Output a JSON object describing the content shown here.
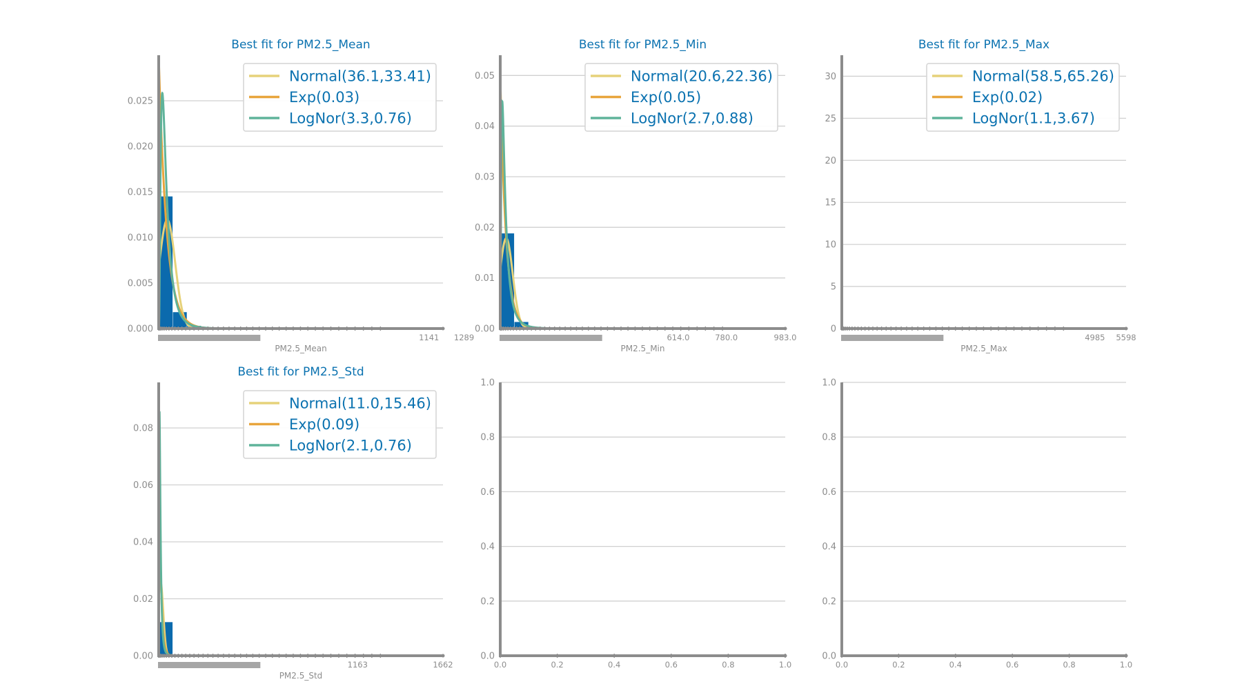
{
  "colors": {
    "hist": "#0b6aad",
    "normal": "#e6d27a",
    "exp": "#e8a53c",
    "lognor": "#5fb39a",
    "title": "#0b72b0",
    "axis": "#8c8c8c",
    "grid": "#d0d0d0"
  },
  "chart_data": [
    {
      "type": "histogram",
      "title": "Best fit for PM2.5_Mean",
      "xlabel": "PM2.5_Mean",
      "xlim": [
        0,
        1200
      ],
      "ylim": [
        0,
        0.03
      ],
      "yticks": [
        "0.000",
        "0.005",
        "0.010",
        "0.015",
        "0.020",
        "0.025"
      ],
      "xtick_labels": [
        "1141",
        "1289"
      ],
      "bins": {
        "start": 0,
        "width": 60,
        "density": [
          0.0145,
          0.0018,
          0.0003,
          5e-05
        ]
      },
      "legend": [
        "Normal(36.1,33.41)",
        "Exp(0.03)",
        "LogNor(3.3,0.76)"
      ],
      "fits": {
        "normal": {
          "mu": 36.1,
          "sigma": 33.41
        },
        "exp": {
          "lambda": 0.03
        },
        "lognor": {
          "mu": 3.3,
          "sigma": 0.76
        }
      }
    },
    {
      "type": "histogram",
      "title": "Best fit for PM2.5_Min",
      "xlabel": "PM2.5_Min",
      "xlim": [
        0,
        983
      ],
      "ylim": [
        0,
        0.054
      ],
      "yticks": [
        "0.00",
        "0.01",
        "0.02",
        "0.03",
        "0.04",
        "0.05"
      ],
      "xtick_labels": [
        "614.0",
        "780.0",
        "983.0"
      ],
      "bins": {
        "start": 0,
        "width": 49,
        "density": [
          0.0188,
          0.0013,
          0.0002,
          4e-05
        ]
      },
      "legend": [
        "Normal(20.6,22.36)",
        "Exp(0.05)",
        "LogNor(2.7,0.88)"
      ],
      "fits": {
        "normal": {
          "mu": 20.6,
          "sigma": 22.36
        },
        "exp": {
          "lambda": 0.05
        },
        "lognor": {
          "mu": 2.7,
          "sigma": 0.88
        }
      }
    },
    {
      "type": "histogram",
      "title": "Best fit for PM2.5_Max",
      "xlabel": "PM2.5_Max",
      "xlim": [
        0,
        5598
      ],
      "ylim": [
        0,
        32.5
      ],
      "yticks": [
        "0",
        "5",
        "10",
        "15",
        "20",
        "25",
        "30"
      ],
      "xtick_labels": [
        "4985",
        "5598"
      ],
      "bins": {
        "start": 0,
        "width": 280,
        "density": [
          0.003,
          0.0002
        ]
      },
      "legend": [
        "Normal(58.5,65.26)",
        "Exp(0.02)",
        "LogNor(1.1,3.67)"
      ],
      "fits": {
        "normal": {
          "mu": 58.5,
          "sigma": 65.26
        },
        "exp": {
          "lambda": 0.02
        },
        "lognor": {
          "mu": 1.1,
          "sigma": 3.67
        }
      }
    },
    {
      "type": "histogram",
      "title": "Best fit for PM2.5_Std",
      "xlabel": "PM2.5_Std",
      "xlim": [
        0,
        1662
      ],
      "ylim": [
        0,
        0.096
      ],
      "yticks": [
        "0.00",
        "0.02",
        "0.04",
        "0.06",
        "0.08"
      ],
      "xtick_labels": [
        "1163",
        "1662"
      ],
      "bins": {
        "start": 0,
        "width": 83,
        "density": [
          0.0118,
          0.0003,
          5e-05
        ]
      },
      "legend": [
        "Normal(11.0,15.46)",
        "Exp(0.09)",
        "LogNor(2.1,0.76)"
      ],
      "fits": {
        "normal": {
          "mu": 11.0,
          "sigma": 15.46
        },
        "exp": {
          "lambda": 0.09
        },
        "lognor": {
          "mu": 2.1,
          "sigma": 0.76
        }
      }
    },
    {
      "type": "empty",
      "title": "",
      "xlabel": "",
      "xlim": [
        0,
        1
      ],
      "ylim": [
        0,
        1
      ],
      "yticks": [
        "0.0",
        "0.2",
        "0.4",
        "0.6",
        "0.8",
        "1.0"
      ],
      "xticks": [
        "0.0",
        "0.2",
        "0.4",
        "0.6",
        "0.8",
        "1.0"
      ]
    },
    {
      "type": "empty",
      "title": "",
      "xlabel": "",
      "xlim": [
        0,
        1
      ],
      "ylim": [
        0,
        1
      ],
      "yticks": [
        "0.0",
        "0.2",
        "0.4",
        "0.6",
        "0.8",
        "1.0"
      ],
      "xticks": [
        "0.0",
        "0.2",
        "0.4",
        "0.6",
        "0.8",
        "1.0"
      ]
    }
  ]
}
